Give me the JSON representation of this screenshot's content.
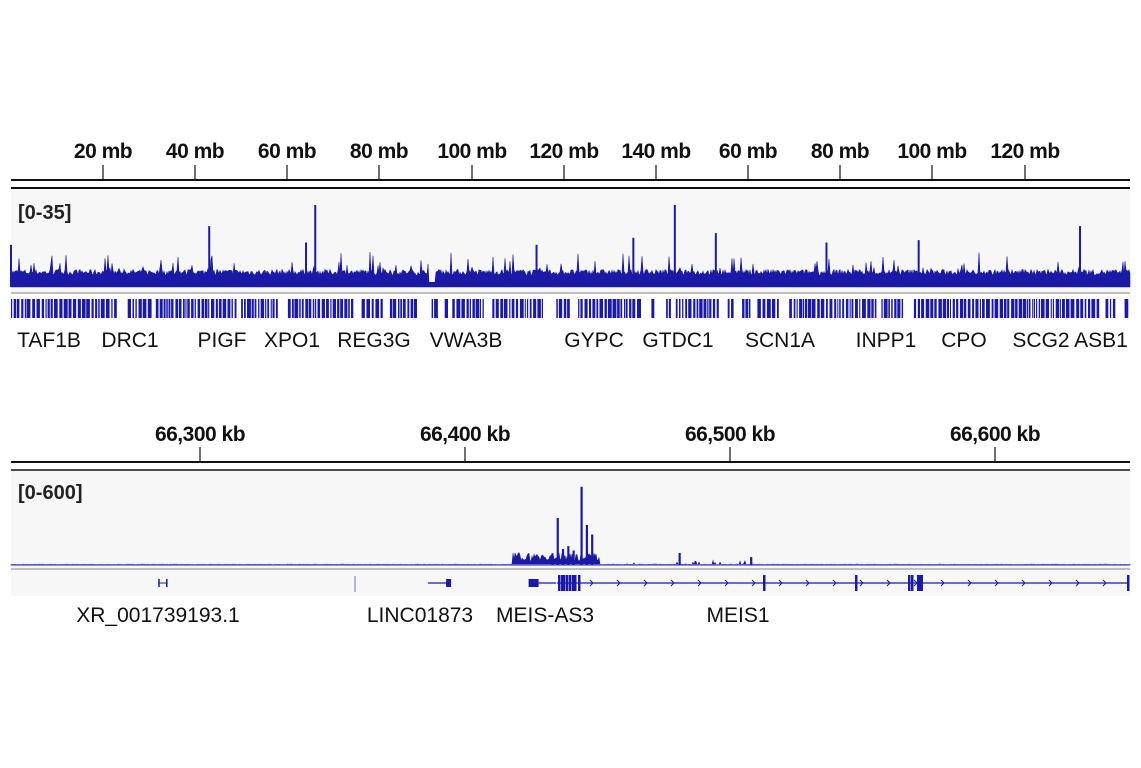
{
  "colors": {
    "signal": "#1a1aa6",
    "panel": "#f7f7f7",
    "axis": "#111111"
  },
  "chart_data": [
    {
      "type": "area",
      "panel": "genome-wide",
      "x_unit": "mb",
      "x_ticks": [
        "20 mb",
        "40 mb",
        "60 mb",
        "80 mb",
        "100 mb",
        "120 mb",
        "140 mb",
        "60 mb",
        "80 mb",
        "100 mb",
        "120 mb"
      ],
      "data_range_label": "[0-35]",
      "ylim": [
        0,
        35
      ],
      "segments": [
        {
          "start_mb": 0,
          "end_mb": 150
        },
        {
          "start_mb": 50,
          "end_mb": 140
        }
      ],
      "baseline_value": 5,
      "peaks": [
        {
          "segment": 1,
          "mb": 0,
          "value": 18
        },
        {
          "segment": 1,
          "mb": 43,
          "value": 26
        },
        {
          "segment": 1,
          "mb": 64,
          "value": 19
        },
        {
          "segment": 1,
          "mb": 66,
          "value": 35
        },
        {
          "segment": 1,
          "mb": 114,
          "value": 18
        },
        {
          "segment": 1,
          "mb": 135,
          "value": 21
        },
        {
          "segment": 1,
          "mb": 144,
          "value": 35
        },
        {
          "segment": 2,
          "mb": 53,
          "value": 23
        },
        {
          "segment": 2,
          "mb": 77,
          "value": 19
        },
        {
          "segment": 2,
          "mb": 97,
          "value": 20
        },
        {
          "segment": 2,
          "mb": 132,
          "value": 26
        }
      ],
      "genes": [
        "TAF1B",
        "DRC1",
        "PIGF",
        "XPO1",
        "REG3G",
        "VWA3B",
        "GYPC",
        "GTDC1",
        "SCN1A",
        "INPP1",
        "CPO",
        "SCG2",
        "ASB1"
      ]
    },
    {
      "type": "area",
      "panel": "locus",
      "x_unit": "kb",
      "x_ticks": [
        "66,300 kb",
        "66,400 kb",
        "66,500 kb",
        "66,600 kb"
      ],
      "xlim": [
        66255,
        66650
      ],
      "data_range_label": "[0-600]",
      "ylim": [
        0,
        600
      ],
      "peaks": [
        {
          "kb": 66433,
          "value": 80
        },
        {
          "kb": 66435,
          "value": 324
        },
        {
          "kb": 66437,
          "value": 110
        },
        {
          "kb": 66439,
          "value": 130
        },
        {
          "kb": 66441,
          "value": 100
        },
        {
          "kb": 66444,
          "value": 540
        },
        {
          "kb": 66446,
          "value": 276
        },
        {
          "kb": 66448,
          "value": 210
        },
        {
          "kb": 66481,
          "value": 83
        },
        {
          "kb": 66508,
          "value": 55
        }
      ],
      "genes": [
        {
          "name": "XR_001739193.1",
          "start_kb": 66285,
          "end_kb": 66287
        },
        {
          "name": "LINC01873",
          "start_kb": 66386,
          "end_kb": 66394
        },
        {
          "name": "MEIS-AS3",
          "start_kb": 66424,
          "end_kb": 66427
        },
        {
          "name": "MEIS1",
          "start_kb": 66435,
          "end_kb": 66650
        }
      ]
    }
  ]
}
